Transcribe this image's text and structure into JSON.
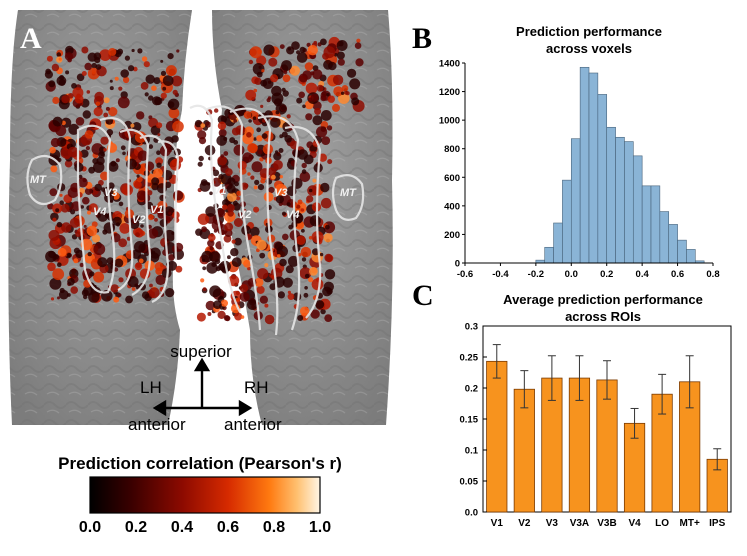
{
  "panel_a": {
    "letter": "A",
    "roi_labels": {
      "mt_left": "MT",
      "v3_left": "V3",
      "v4_left": "V4",
      "v2_left": "V2",
      "v1_left": "V1",
      "v1_right": "V1",
      "v3_right": "V3",
      "v2_right": "V2",
      "v4_right": "V4",
      "mt_right": "MT"
    },
    "orientation": {
      "superior": "superior",
      "lh": "LH",
      "rh": "RH",
      "anterior_left": "anterior",
      "anterior_right": "anterior"
    },
    "colorbar": {
      "title": "Prediction correlation (Pearson's r)",
      "ticks": [
        "0.0",
        "0.2",
        "0.4",
        "0.6",
        "0.8",
        "1.0"
      ]
    }
  },
  "panel_b_letter": "B",
  "panel_c_letter": "C",
  "chart_data": [
    {
      "type": "bar",
      "title": "Prediction performance across voxels",
      "title_lines": [
        "Prediction performance",
        "across voxels"
      ],
      "color": "#8ab4d6",
      "bin_width": 0.05,
      "bin_starts": [
        -0.2,
        -0.15,
        -0.1,
        -0.05,
        0.0,
        0.05,
        0.1,
        0.15,
        0.2,
        0.25,
        0.3,
        0.35,
        0.4,
        0.45,
        0.5,
        0.55,
        0.6,
        0.65,
        0.7
      ],
      "values": [
        20,
        110,
        280,
        580,
        870,
        1370,
        1330,
        1180,
        950,
        880,
        850,
        750,
        540,
        540,
        360,
        270,
        160,
        95,
        15
      ],
      "xlim": [
        -0.6,
        0.8
      ],
      "ylim": [
        0,
        1400
      ],
      "xticks": [
        "-0.6",
        "-0.4",
        "-0.2",
        "0.0",
        "0.2",
        "0.4",
        "0.6",
        "0.8"
      ],
      "xtick_values": [
        -0.6,
        -0.4,
        -0.2,
        0.0,
        0.2,
        0.4,
        0.6,
        0.8
      ],
      "yticks": [
        "0",
        "200",
        "400",
        "600",
        "800",
        "1000",
        "1200",
        "1400"
      ],
      "ytick_values": [
        0,
        200,
        400,
        600,
        800,
        1000,
        1200,
        1400
      ]
    },
    {
      "type": "bar",
      "title": "Average prediction performance across ROIs",
      "title_lines": [
        "Average prediction performance",
        "across ROIs"
      ],
      "color": "#f7931e",
      "categories": [
        "V1",
        "V2",
        "V3",
        "V3A",
        "V3B",
        "V4",
        "LO",
        "MT+",
        "IPS"
      ],
      "values": [
        0.243,
        0.198,
        0.216,
        0.216,
        0.213,
        0.143,
        0.19,
        0.21,
        0.085
      ],
      "errors": [
        0.027,
        0.03,
        0.036,
        0.036,
        0.031,
        0.024,
        0.032,
        0.042,
        0.017
      ],
      "ylim": [
        0,
        0.3
      ],
      "yticks": [
        "0.0",
        "0.05",
        "0.1",
        "0.15",
        "0.2",
        "0.25",
        "0.3"
      ],
      "ytick_values": [
        0,
        0.05,
        0.1,
        0.15,
        0.2,
        0.25,
        0.3
      ]
    }
  ]
}
